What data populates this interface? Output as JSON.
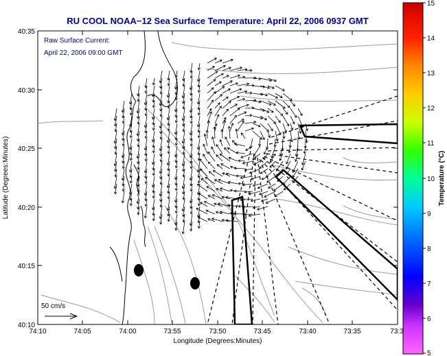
{
  "title": "RU COOL  NOAA−12  Sea Surface Temperature:  April 22, 2006 0937 GMT",
  "note": {
    "line1": "Raw Surface Current:",
    "line2": "April 22, 2006 09:00 GMT"
  },
  "scale_label": "50 cm/s",
  "x_axis": {
    "label": "Longitude (Degrees:Minutes)",
    "ticks": [
      "74:10",
      "74:05",
      "74:00",
      "73:55",
      "73:50",
      "73:45",
      "73:40",
      "73:35",
      "73:3"
    ]
  },
  "y_axis": {
    "label": "Latitude (Degrees:Minutes)",
    "ticks": [
      "40:35",
      "40:30",
      "40:25",
      "40:20",
      "40:15",
      "40:10"
    ]
  },
  "colorbar": {
    "label": "Temperature (°C)",
    "ticks": [
      "15",
      "14",
      "13",
      "12",
      "11",
      "10",
      "9",
      "8",
      "7",
      "6",
      "5"
    ]
  },
  "colors": {
    "title": "#0000aa",
    "arrows": "#000000",
    "contours": "#999999"
  }
}
